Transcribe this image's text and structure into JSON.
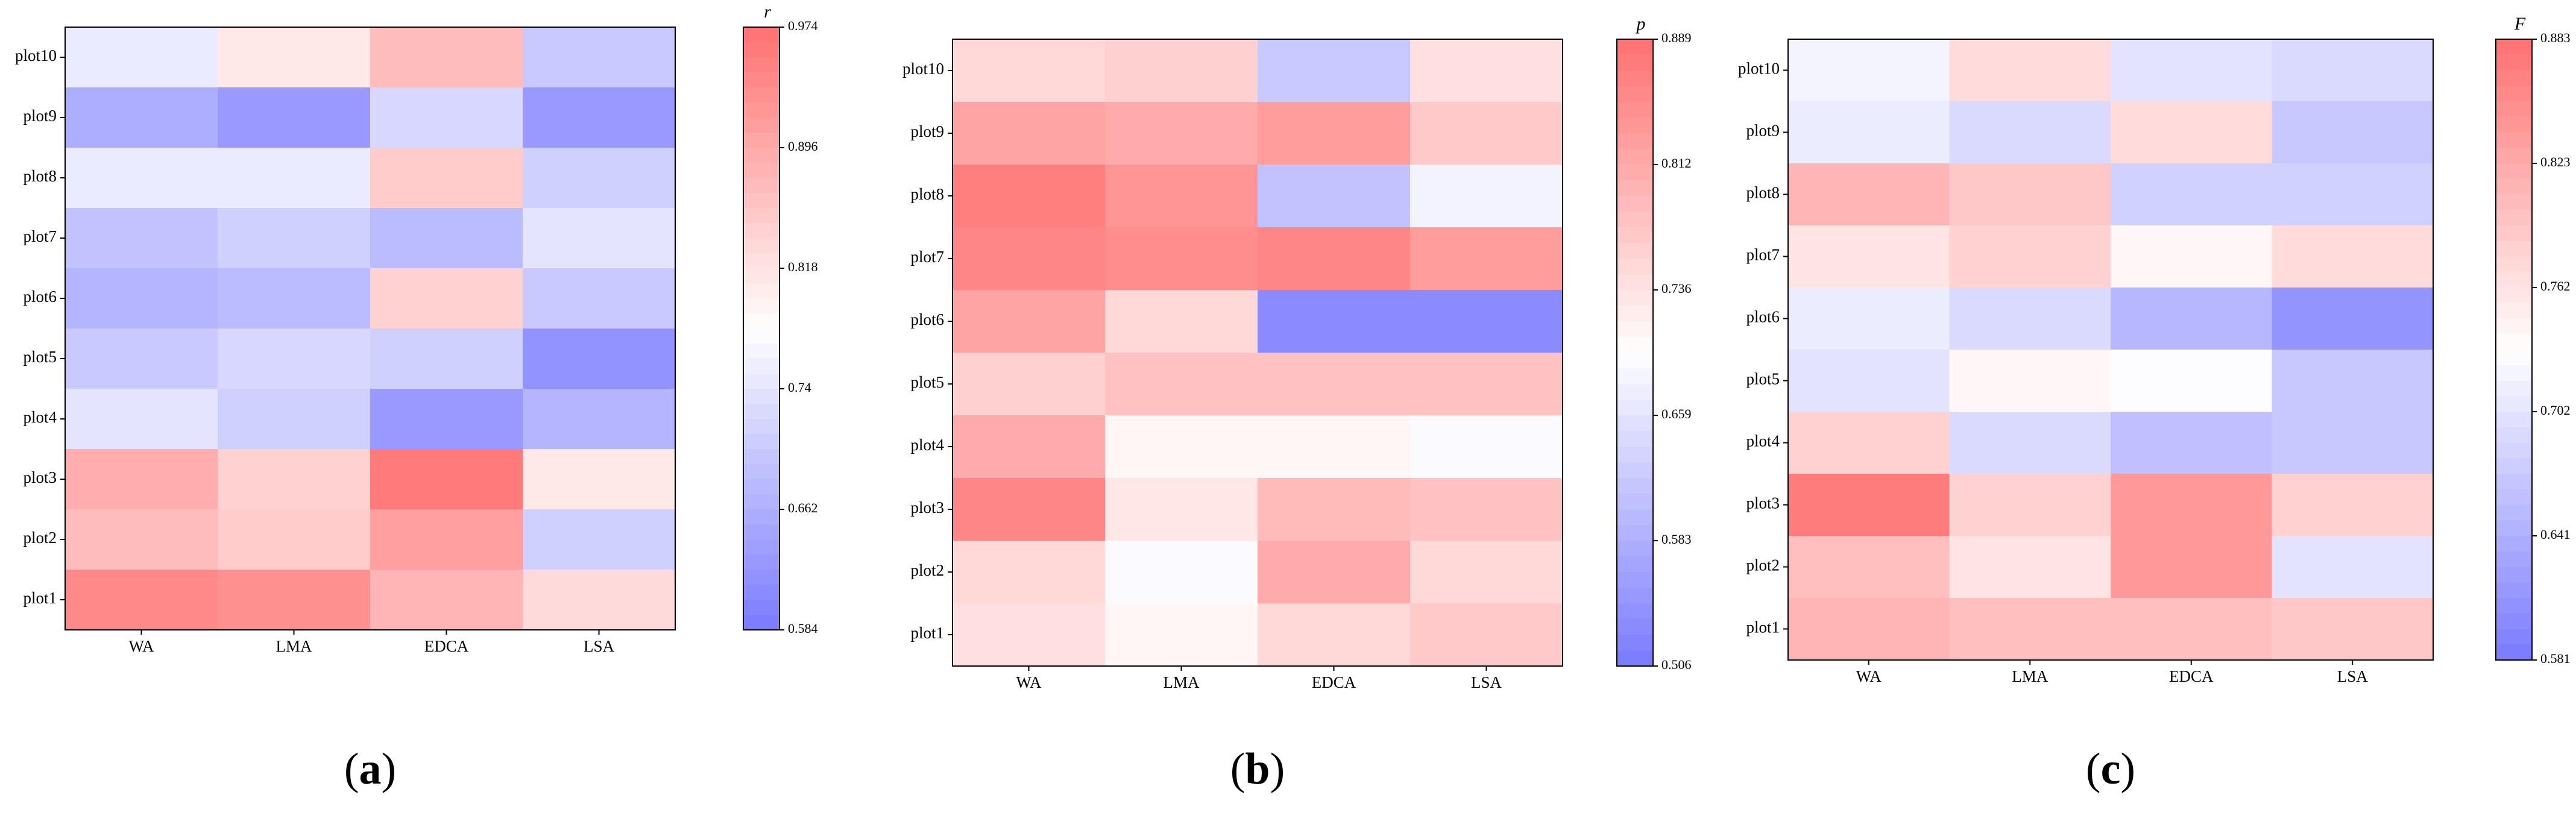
{
  "chart_data": [
    {
      "type": "heatmap",
      "panel_label": "a",
      "colorbar_title": "r",
      "colorbar_ticks": [
        "0.974",
        "0.896",
        "0.818",
        "0.74",
        "0.662",
        "0.584"
      ],
      "vmin": 0.584,
      "vmax": 0.974,
      "x_categories": [
        "WA",
        "LMA",
        "EDCA",
        "LSA"
      ],
      "y_categories": [
        "plot10",
        "plot9",
        "plot8",
        "plot7",
        "plot6",
        "plot5",
        "plot4",
        "plot3",
        "plot2",
        "plot1"
      ],
      "values": [
        [
          0.75,
          0.81,
          0.87,
          0.7
        ],
        [
          0.66,
          0.63,
          0.72,
          0.63
        ],
        [
          0.75,
          0.75,
          0.85,
          0.71
        ],
        [
          0.69,
          0.71,
          0.68,
          0.74
        ],
        [
          0.67,
          0.68,
          0.84,
          0.7
        ],
        [
          0.7,
          0.72,
          0.71,
          0.62
        ],
        [
          0.74,
          0.71,
          0.63,
          0.67
        ],
        [
          0.89,
          0.84,
          0.96,
          0.81
        ],
        [
          0.87,
          0.85,
          0.91,
          0.71
        ],
        [
          0.94,
          0.93,
          0.88,
          0.83
        ]
      ]
    },
    {
      "type": "heatmap",
      "panel_label": "b",
      "colorbar_title": "p",
      "colorbar_ticks": [
        "0.889",
        "0.812",
        "0.736",
        "0.659",
        "0.583",
        "0.506"
      ],
      "vmin": 0.506,
      "vmax": 0.889,
      "x_categories": [
        "WA",
        "LMA",
        "EDCA",
        "LSA"
      ],
      "y_categories": [
        "plot10",
        "plot9",
        "plot8",
        "plot7",
        "plot6",
        "plot5",
        "plot4",
        "plot3",
        "plot2",
        "plot1"
      ],
      "values": [
        [
          0.75,
          0.76,
          0.62,
          0.74
        ],
        [
          0.82,
          0.81,
          0.83,
          0.77
        ],
        [
          0.87,
          0.84,
          0.61,
          0.68
        ],
        [
          0.86,
          0.85,
          0.86,
          0.83
        ],
        [
          0.82,
          0.75,
          0.53,
          0.53
        ],
        [
          0.76,
          0.78,
          0.78,
          0.78
        ],
        [
          0.81,
          0.71,
          0.71,
          0.69
        ],
        [
          0.86,
          0.73,
          0.79,
          0.78
        ],
        [
          0.75,
          0.69,
          0.81,
          0.75
        ],
        [
          0.74,
          0.71,
          0.75,
          0.77
        ]
      ]
    },
    {
      "type": "heatmap",
      "panel_label": "c",
      "colorbar_title": "F",
      "colorbar_ticks": [
        "0.883",
        "0.823",
        "0.762",
        "0.702",
        "0.641",
        "0.581"
      ],
      "vmin": 0.581,
      "vmax": 0.883,
      "x_categories": [
        "WA",
        "LMA",
        "EDCA",
        "LSA"
      ],
      "y_categories": [
        "plot10",
        "plot9",
        "plot8",
        "plot7",
        "plot6",
        "plot5",
        "plot4",
        "plot3",
        "plot2",
        "plot1"
      ],
      "values": [
        [
          0.72,
          0.77,
          0.7,
          0.69
        ],
        [
          0.71,
          0.69,
          0.77,
          0.67
        ],
        [
          0.81,
          0.79,
          0.68,
          0.68
        ],
        [
          0.76,
          0.78,
          0.74,
          0.77
        ],
        [
          0.71,
          0.69,
          0.65,
          0.61
        ],
        [
          0.7,
          0.74,
          0.73,
          0.67
        ],
        [
          0.78,
          0.69,
          0.66,
          0.67
        ],
        [
          0.87,
          0.78,
          0.84,
          0.78
        ],
        [
          0.8,
          0.76,
          0.84,
          0.7
        ],
        [
          0.81,
          0.8,
          0.8,
          0.79
        ]
      ]
    }
  ]
}
